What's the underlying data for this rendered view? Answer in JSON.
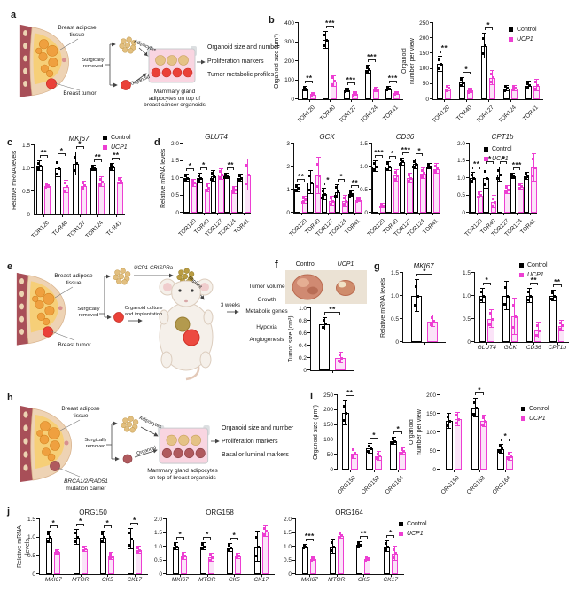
{
  "colors": {
    "control": "#000000",
    "ucp1": "#ed3ed2",
    "ucp1_light": "#fbe3f8",
    "accent_red": "#ea4138"
  },
  "legend": {
    "control": "Control",
    "ucp1": "UCP1"
  },
  "panels": {
    "a": {
      "label": "a",
      "adipose_label": "Breast adipose tissue",
      "tumor_label": "Breast tumor",
      "removed_label": "Surgically removed",
      "arrow_top_label": "Adipocytes",
      "arrow_bottom_label": "Organoid",
      "dish_caption": "Mammary gland adipocytes on top of breast cancer organoids",
      "outputs": [
        "Organoid size and number",
        "Proliferation markers",
        "Tumor metabolic profiles"
      ]
    },
    "b": {
      "label": "b"
    },
    "c": {
      "label": "c"
    },
    "d": {
      "label": "d"
    },
    "e": {
      "label": "e",
      "adipose_label": "Breast adipose tissue",
      "tumor_label": "Breast tumor",
      "removed_label": "Surgically removed",
      "crispr_label": "UCP1-CRISPRa",
      "implant_label": "Implant",
      "culture_label": "Organoid culture and implantation",
      "weeks_label": "3 weeks",
      "outputs": [
        "Tumor volume",
        "Growth",
        "Metabolic genes",
        "Hypoxia",
        "Angiogenesis"
      ]
    },
    "f": {
      "label": "f",
      "control_label": "Control",
      "ucp1_label": "UCP1"
    },
    "g": {
      "label": "g"
    },
    "h": {
      "label": "h",
      "adipose_label": "Breast adipose tissue",
      "removed_label": "Surgically removed",
      "carrier_gene": "BRCA1/2/RAD51",
      "carrier_text": "mutation carrier",
      "arrow_top_label": "Adipocytes",
      "arrow_bottom_label": "Organoid",
      "dish_caption": "Mammary gland adipocytes on top of breast organoids",
      "outputs": [
        "Organoid size and number",
        "Proliferation markers",
        "Basal or luminal markers"
      ]
    },
    "i": {
      "label": "i"
    },
    "j": {
      "label": "j"
    }
  },
  "chart_data": [
    {
      "id": "b1",
      "type": "bar",
      "title": "",
      "ylabel": "Organoid size (μm²)",
      "ymax": 400,
      "yticks": [
        0,
        100,
        200,
        300,
        400
      ],
      "ytick_labels": [
        "0",
        "100",
        "200",
        "300",
        "400"
      ],
      "categories": [
        "TOR120",
        "TOR40",
        "TOR127",
        "TOR124",
        "TOR41"
      ],
      "series": [
        {
          "name": "Control",
          "values": [
            55,
            310,
            45,
            155,
            55
          ],
          "err": [
            12,
            45,
            10,
            20,
            10
          ]
        },
        {
          "name": "UCP1",
          "values": [
            25,
            95,
            28,
            50,
            30
          ],
          "err": [
            8,
            28,
            8,
            12,
            8
          ]
        }
      ],
      "sig": [
        "**",
        "***",
        "***",
        "***",
        "***"
      ]
    },
    {
      "id": "b2",
      "type": "bar",
      "title": "",
      "ylabel": "Organoid\nnumber per view",
      "ymax": 250,
      "yticks": [
        0,
        50,
        100,
        150,
        200,
        250
      ],
      "ytick_labels": [
        "0",
        "50",
        "100",
        "150",
        "200",
        "250"
      ],
      "categories": [
        "TOR120",
        "TOR40",
        "TOR127",
        "TOR124",
        "TOR41"
      ],
      "series": [
        {
          "name": "Control",
          "values": [
            115,
            55,
            175,
            35,
            45
          ],
          "err": [
            25,
            15,
            40,
            10,
            12
          ]
        },
        {
          "name": "UCP1",
          "values": [
            35,
            28,
            70,
            35,
            45
          ],
          "err": [
            10,
            8,
            22,
            8,
            18
          ]
        }
      ],
      "sig": [
        "**",
        "*",
        "*",
        "",
        ""
      ]
    },
    {
      "id": "c1",
      "type": "bar",
      "title": "MKI67",
      "ylabel": "Relative mRNA levels",
      "ymax": 1.5,
      "yticks": [
        0,
        0.5,
        1.0,
        1.5
      ],
      "ytick_labels": [
        "0",
        "0.5",
        "1.0",
        "1.5"
      ],
      "categories": [
        "TOR120",
        "TOR40",
        "TOR127",
        "TOR124",
        "TOR41"
      ],
      "series": [
        {
          "name": "Control",
          "values": [
            1.05,
            1.0,
            1.1,
            1.0,
            1.02
          ],
          "err": [
            0.1,
            0.2,
            0.25,
            0.06,
            0.08
          ]
        },
        {
          "name": "UCP1",
          "values": [
            0.62,
            0.6,
            0.62,
            0.7,
            0.72
          ],
          "err": [
            0.05,
            0.14,
            0.1,
            0.1,
            0.06
          ]
        }
      ],
      "sig": [
        "**",
        "*",
        "*",
        "**",
        "**"
      ]
    },
    {
      "id": "d1",
      "type": "bar",
      "title": "GLUT4",
      "ylabel": "Relative mRNA levels",
      "ymax": 2,
      "yticks": [
        0,
        0.5,
        1.0,
        1.5,
        2.0
      ],
      "ytick_labels": [
        "0",
        "0.5",
        "1.0",
        "1.5",
        "2.0"
      ],
      "categories": [
        "TOR120",
        "TOR40",
        "TOR127",
        "TOR124",
        "TOR41"
      ],
      "series": [
        {
          "name": "Control",
          "values": [
            1.0,
            1.0,
            1.05,
            1.05,
            1.0
          ],
          "err": [
            0.1,
            0.12,
            0.15,
            0.08,
            0.1
          ]
        },
        {
          "name": "UCP1",
          "values": [
            0.85,
            0.7,
            1.1,
            0.65,
            1.1
          ],
          "err": [
            0.1,
            0.12,
            0.15,
            0.1,
            0.45
          ]
        }
      ],
      "sig": [
        "*",
        "*",
        "",
        "**",
        ""
      ]
    },
    {
      "id": "d2",
      "type": "bar",
      "title": "GCK",
      "ylabel": "",
      "ymax": 3,
      "yticks": [
        0,
        1,
        2,
        3
      ],
      "ytick_labels": [
        "0",
        "1",
        "2",
        "3"
      ],
      "categories": [
        "TOR120",
        "TOR40",
        "TOR127",
        "TOR124",
        "TOR41"
      ],
      "series": [
        {
          "name": "Control",
          "values": [
            1.05,
            1.3,
            0.8,
            0.9,
            0.8
          ],
          "err": [
            0.15,
            0.5,
            0.25,
            0.3,
            0.12
          ]
        },
        {
          "name": "UCP1",
          "values": [
            0.55,
            1.6,
            0.5,
            0.5,
            0.55
          ],
          "err": [
            0.15,
            0.8,
            0.2,
            0.25,
            0.1
          ]
        }
      ],
      "sig": [
        "**",
        "",
        "*",
        "*",
        "**"
      ]
    },
    {
      "id": "d3",
      "type": "bar",
      "title": "CD36",
      "ylabel": "",
      "ymax": 1.5,
      "yticks": [
        0,
        0.5,
        1.0,
        1.5
      ],
      "ytick_labels": [
        "0",
        "0.5",
        "1.0",
        "1.5"
      ],
      "categories": [
        "TOR120",
        "TOR40",
        "TOR127",
        "TOR124",
        "TOR41"
      ],
      "series": [
        {
          "name": "Control",
          "values": [
            1.0,
            1.0,
            1.1,
            1.05,
            1.0
          ],
          "err": [
            0.12,
            0.1,
            0.08,
            0.1,
            0.05
          ]
        },
        {
          "name": "UCP1",
          "values": [
            0.15,
            0.8,
            0.75,
            0.85,
            0.95
          ],
          "err": [
            0.05,
            0.12,
            0.1,
            0.12,
            0.1
          ]
        }
      ],
      "sig": [
        "***",
        "*",
        "***",
        "*",
        ""
      ]
    },
    {
      "id": "d4",
      "type": "bar",
      "title": "CPT1b",
      "ylabel": "",
      "ymax": 2,
      "yticks": [
        0,
        0.5,
        1.0,
        1.5,
        2.0
      ],
      "ytick_labels": [
        "0",
        "0.5",
        "1.0",
        "1.5",
        "2.0"
      ],
      "categories": [
        "TOR120",
        "TOR40",
        "TOR127",
        "TOR124",
        "TOR41"
      ],
      "series": [
        {
          "name": "Control",
          "values": [
            1.0,
            1.0,
            1.1,
            1.05,
            1.05
          ],
          "err": [
            0.15,
            0.3,
            0.2,
            0.08,
            0.1
          ]
        },
        {
          "name": "UCP1",
          "values": [
            0.5,
            0.3,
            0.65,
            0.75,
            1.3
          ],
          "err": [
            0.1,
            0.18,
            0.12,
            0.08,
            0.4
          ]
        }
      ],
      "sig": [
        "**",
        "*",
        "*",
        "***",
        ""
      ]
    },
    {
      "id": "f1",
      "type": "bar",
      "title": "",
      "ylabel": "Tumor size (cm³)",
      "ymax": 1.0,
      "yticks": [
        0,
        0.2,
        0.4,
        0.6,
        0.8,
        1.0
      ],
      "ytick_labels": [
        "0",
        "0.2",
        "0.4",
        "0.6",
        "0.8",
        "1.0"
      ],
      "categories": [
        ""
      ],
      "series": [
        {
          "name": "Control",
          "values": [
            0.75
          ],
          "err": [
            0.1
          ]
        },
        {
          "name": "UCP1",
          "values": [
            0.2
          ],
          "err": [
            0.08
          ]
        }
      ],
      "sig": [
        "**"
      ]
    },
    {
      "id": "g1",
      "type": "bar",
      "title": "MKI67",
      "ylabel": "Relative mRNA levels",
      "ymax": 1.5,
      "yticks": [
        0,
        0.5,
        1.0,
        1.5
      ],
      "ytick_labels": [
        "0",
        "0.5",
        "1.0",
        "1.5"
      ],
      "categories": [
        ""
      ],
      "series": [
        {
          "name": "Control",
          "values": [
            1.0
          ],
          "err": [
            0.35
          ]
        },
        {
          "name": "UCP1",
          "values": [
            0.45
          ],
          "err": [
            0.12
          ]
        }
      ],
      "sig": [
        "*"
      ]
    },
    {
      "id": "g2",
      "type": "bar",
      "title": "",
      "ylabel": "",
      "ymax": 1.5,
      "yticks": [
        0,
        0.5,
        1.0,
        1.5
      ],
      "ytick_labels": [
        "0",
        "0.5",
        "1.0",
        "1.5"
      ],
      "categories": [
        "GLUT4",
        "GCK",
        "CD36",
        "CPT1b"
      ],
      "series": [
        {
          "name": "Control",
          "values": [
            1.0,
            1.0,
            1.0,
            1.0
          ],
          "err": [
            0.15,
            0.3,
            0.15,
            0.12
          ]
        },
        {
          "name": "UCP1",
          "values": [
            0.5,
            0.55,
            0.25,
            0.35
          ],
          "err": [
            0.2,
            0.4,
            0.18,
            0.12
          ]
        }
      ],
      "sig": [
        "*",
        "",
        "**",
        "**"
      ]
    },
    {
      "id": "i1",
      "type": "bar",
      "title": "",
      "ylabel": "Organoid size (μm²)",
      "ymax": 250,
      "yticks": [
        0,
        50,
        100,
        150,
        200,
        250
      ],
      "ytick_labels": [
        "0",
        "50",
        "100",
        "150",
        "200",
        "250"
      ],
      "categories": [
        "ORG150",
        "ORG158",
        "ORG164"
      ],
      "series": [
        {
          "name": "Control",
          "values": [
            190,
            70,
            95
          ],
          "err": [
            40,
            15,
            12
          ]
        },
        {
          "name": "UCP1",
          "values": [
            55,
            45,
            60
          ],
          "err": [
            18,
            14,
            10
          ]
        }
      ],
      "sig": [
        "**",
        "*",
        "*"
      ]
    },
    {
      "id": "i2",
      "type": "bar",
      "title": "",
      "ylabel": "Organoid\nnumber per view",
      "ymax": 200,
      "yticks": [
        0,
        50,
        100,
        150,
        200
      ],
      "ytick_labels": [
        "0",
        "50",
        "100",
        "150",
        "200"
      ],
      "categories": [
        "ORG150",
        "ORG158",
        "ORG164"
      ],
      "series": [
        {
          "name": "Control",
          "values": [
            130,
            165,
            55
          ],
          "err": [
            20,
            25,
            12
          ]
        },
        {
          "name": "UCP1",
          "values": [
            135,
            130,
            35
          ],
          "err": [
            18,
            15,
            10
          ]
        }
      ],
      "sig": [
        "",
        "*",
        "*"
      ]
    },
    {
      "id": "j1",
      "type": "bar",
      "title": "ORG150",
      "ylabel": "Relative mRNA levels",
      "ymax": 1.5,
      "yticks": [
        0,
        0.5,
        1.0,
        1.5
      ],
      "ytick_labels": [
        "0",
        "0.5",
        "1.0",
        "1.5"
      ],
      "categories": [
        "MKI67",
        "MTOR",
        "CK5",
        "CK17"
      ],
      "series": [
        {
          "name": "Control",
          "values": [
            1.0,
            1.0,
            1.0,
            0.95
          ],
          "err": [
            0.15,
            0.2,
            0.15,
            0.28
          ]
        },
        {
          "name": "UCP1",
          "values": [
            0.6,
            0.68,
            0.48,
            0.65
          ],
          "err": [
            0.06,
            0.08,
            0.1,
            0.1
          ]
        }
      ],
      "sig": [
        "*",
        "*",
        "*",
        "*"
      ]
    },
    {
      "id": "j2",
      "type": "bar",
      "title": "ORG158",
      "ylabel": "",
      "ymax": 2,
      "yticks": [
        0,
        0.5,
        1.0,
        1.5,
        2.0
      ],
      "ytick_labels": [
        "0",
        "0.5",
        "1.0",
        "1.5",
        "2.0"
      ],
      "categories": [
        "MKI67",
        "MTOR",
        "CK5",
        "CK17"
      ],
      "series": [
        {
          "name": "Control",
          "values": [
            1.0,
            1.0,
            0.95,
            1.0
          ],
          "err": [
            0.12,
            0.12,
            0.15,
            0.55
          ]
        },
        {
          "name": "UCP1",
          "values": [
            0.65,
            0.6,
            0.65,
            1.55
          ],
          "err": [
            0.12,
            0.15,
            0.1,
            0.2
          ]
        }
      ],
      "sig": [
        "*",
        "*",
        "*",
        ""
      ]
    },
    {
      "id": "j3",
      "type": "bar",
      "title": "ORG164",
      "ylabel": "",
      "ymax": 2,
      "yticks": [
        0,
        0.5,
        1.0,
        1.5,
        2.0
      ],
      "ytick_labels": [
        "0",
        "0.5",
        "1.0",
        "1.5",
        "2.0"
      ],
      "categories": [
        "MKI67",
        "MTOR",
        "CK5",
        "CK17"
      ],
      "series": [
        {
          "name": "Control",
          "values": [
            1.0,
            1.0,
            1.05,
            1.0
          ],
          "err": [
            0.08,
            0.25,
            0.1,
            0.2
          ]
        },
        {
          "name": "UCP1",
          "values": [
            0.55,
            1.4,
            0.55,
            0.75
          ],
          "err": [
            0.06,
            0.12,
            0.08,
            0.25
          ]
        }
      ],
      "sig": [
        "***",
        "",
        "**",
        "*"
      ]
    }
  ]
}
